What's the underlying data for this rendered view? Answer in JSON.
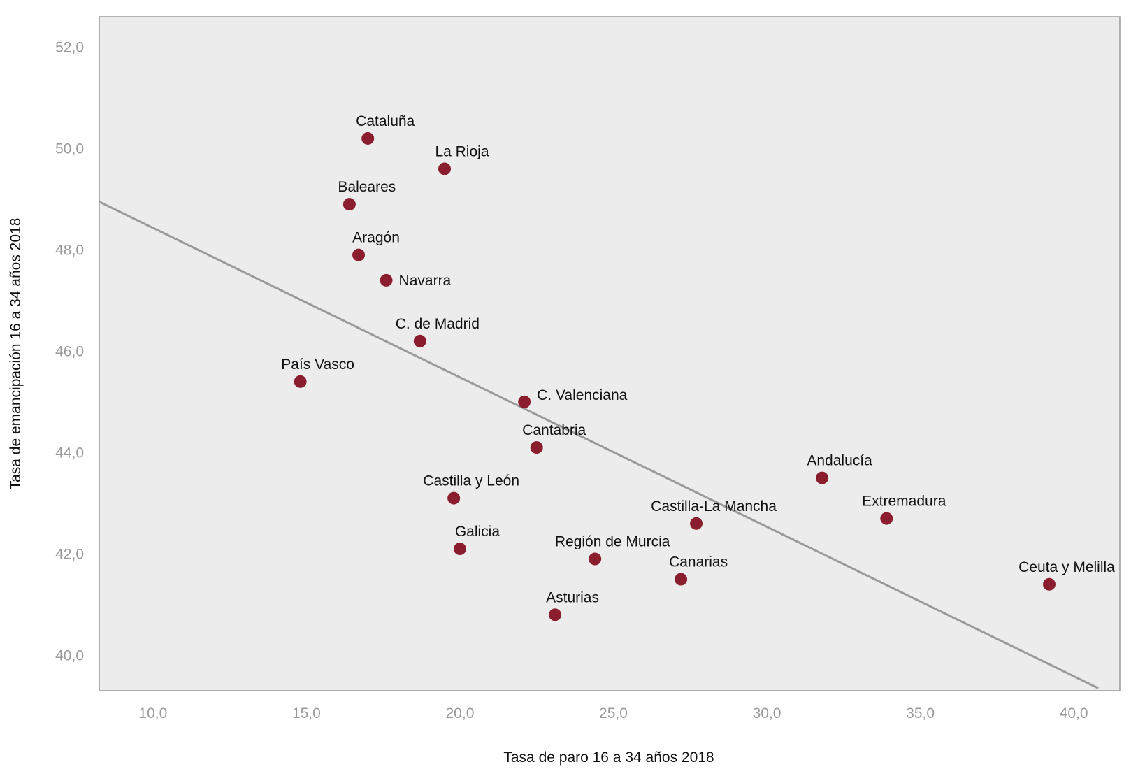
{
  "chart_data": {
    "type": "scatter",
    "xlabel": "Tasa de paro 16 a 34 años 2018",
    "ylabel": "Tasa de emancipación 16 a 34 años 2018",
    "xlim": [
      8.25,
      41.5
    ],
    "ylim": [
      39.3,
      52.6
    ],
    "x_ticks": [
      10,
      15,
      20,
      25,
      30,
      35,
      40
    ],
    "y_ticks": [
      40,
      42,
      44,
      46,
      48,
      50,
      52
    ],
    "x_tick_labels": [
      "10,0",
      "15,0",
      "20,0",
      "25,0",
      "30,0",
      "35,0",
      "40,0"
    ],
    "y_tick_labels": [
      "40,0",
      "42,0",
      "44,0",
      "46,0",
      "48,0",
      "50,0",
      "52,0"
    ],
    "grid": false,
    "colors": {
      "plot_bg": "#ececec",
      "point": "#8b1e2e",
      "trend": "#9a9a9a",
      "frame": "#9a9a9a"
    },
    "trend_line": {
      "x": [
        8.25,
        40.8
      ],
      "y": [
        48.95,
        39.35
      ]
    },
    "points": [
      {
        "label": "Cataluña",
        "x": 17.0,
        "y": 50.2
      },
      {
        "label": "La Rioja",
        "x": 19.5,
        "y": 49.6
      },
      {
        "label": "Baleares",
        "x": 16.4,
        "y": 48.9
      },
      {
        "label": "Aragón",
        "x": 16.7,
        "y": 47.9
      },
      {
        "label": "Navarra",
        "x": 17.6,
        "y": 47.4
      },
      {
        "label": "C. de Madrid",
        "x": 18.7,
        "y": 46.2
      },
      {
        "label": "País Vasco",
        "x": 14.8,
        "y": 45.4
      },
      {
        "label": "C. Valenciana",
        "x": 22.1,
        "y": 45.0
      },
      {
        "label": "Cantabria",
        "x": 22.5,
        "y": 44.1
      },
      {
        "label": "Andalucía",
        "x": 31.8,
        "y": 43.5
      },
      {
        "label": "Castilla y León",
        "x": 19.8,
        "y": 43.1
      },
      {
        "label": "Extremadura",
        "x": 33.9,
        "y": 42.7
      },
      {
        "label": "Castilla-La Mancha",
        "x": 27.7,
        "y": 42.6
      },
      {
        "label": "Galicia",
        "x": 20.0,
        "y": 42.1
      },
      {
        "label": "Región de Murcia",
        "x": 24.4,
        "y": 41.9
      },
      {
        "label": "Canarias",
        "x": 27.2,
        "y": 41.5
      },
      {
        "label": "Ceuta y Melilla",
        "x": 39.2,
        "y": 41.4
      },
      {
        "label": "Asturias",
        "x": 23.1,
        "y": 40.8
      }
    ]
  }
}
